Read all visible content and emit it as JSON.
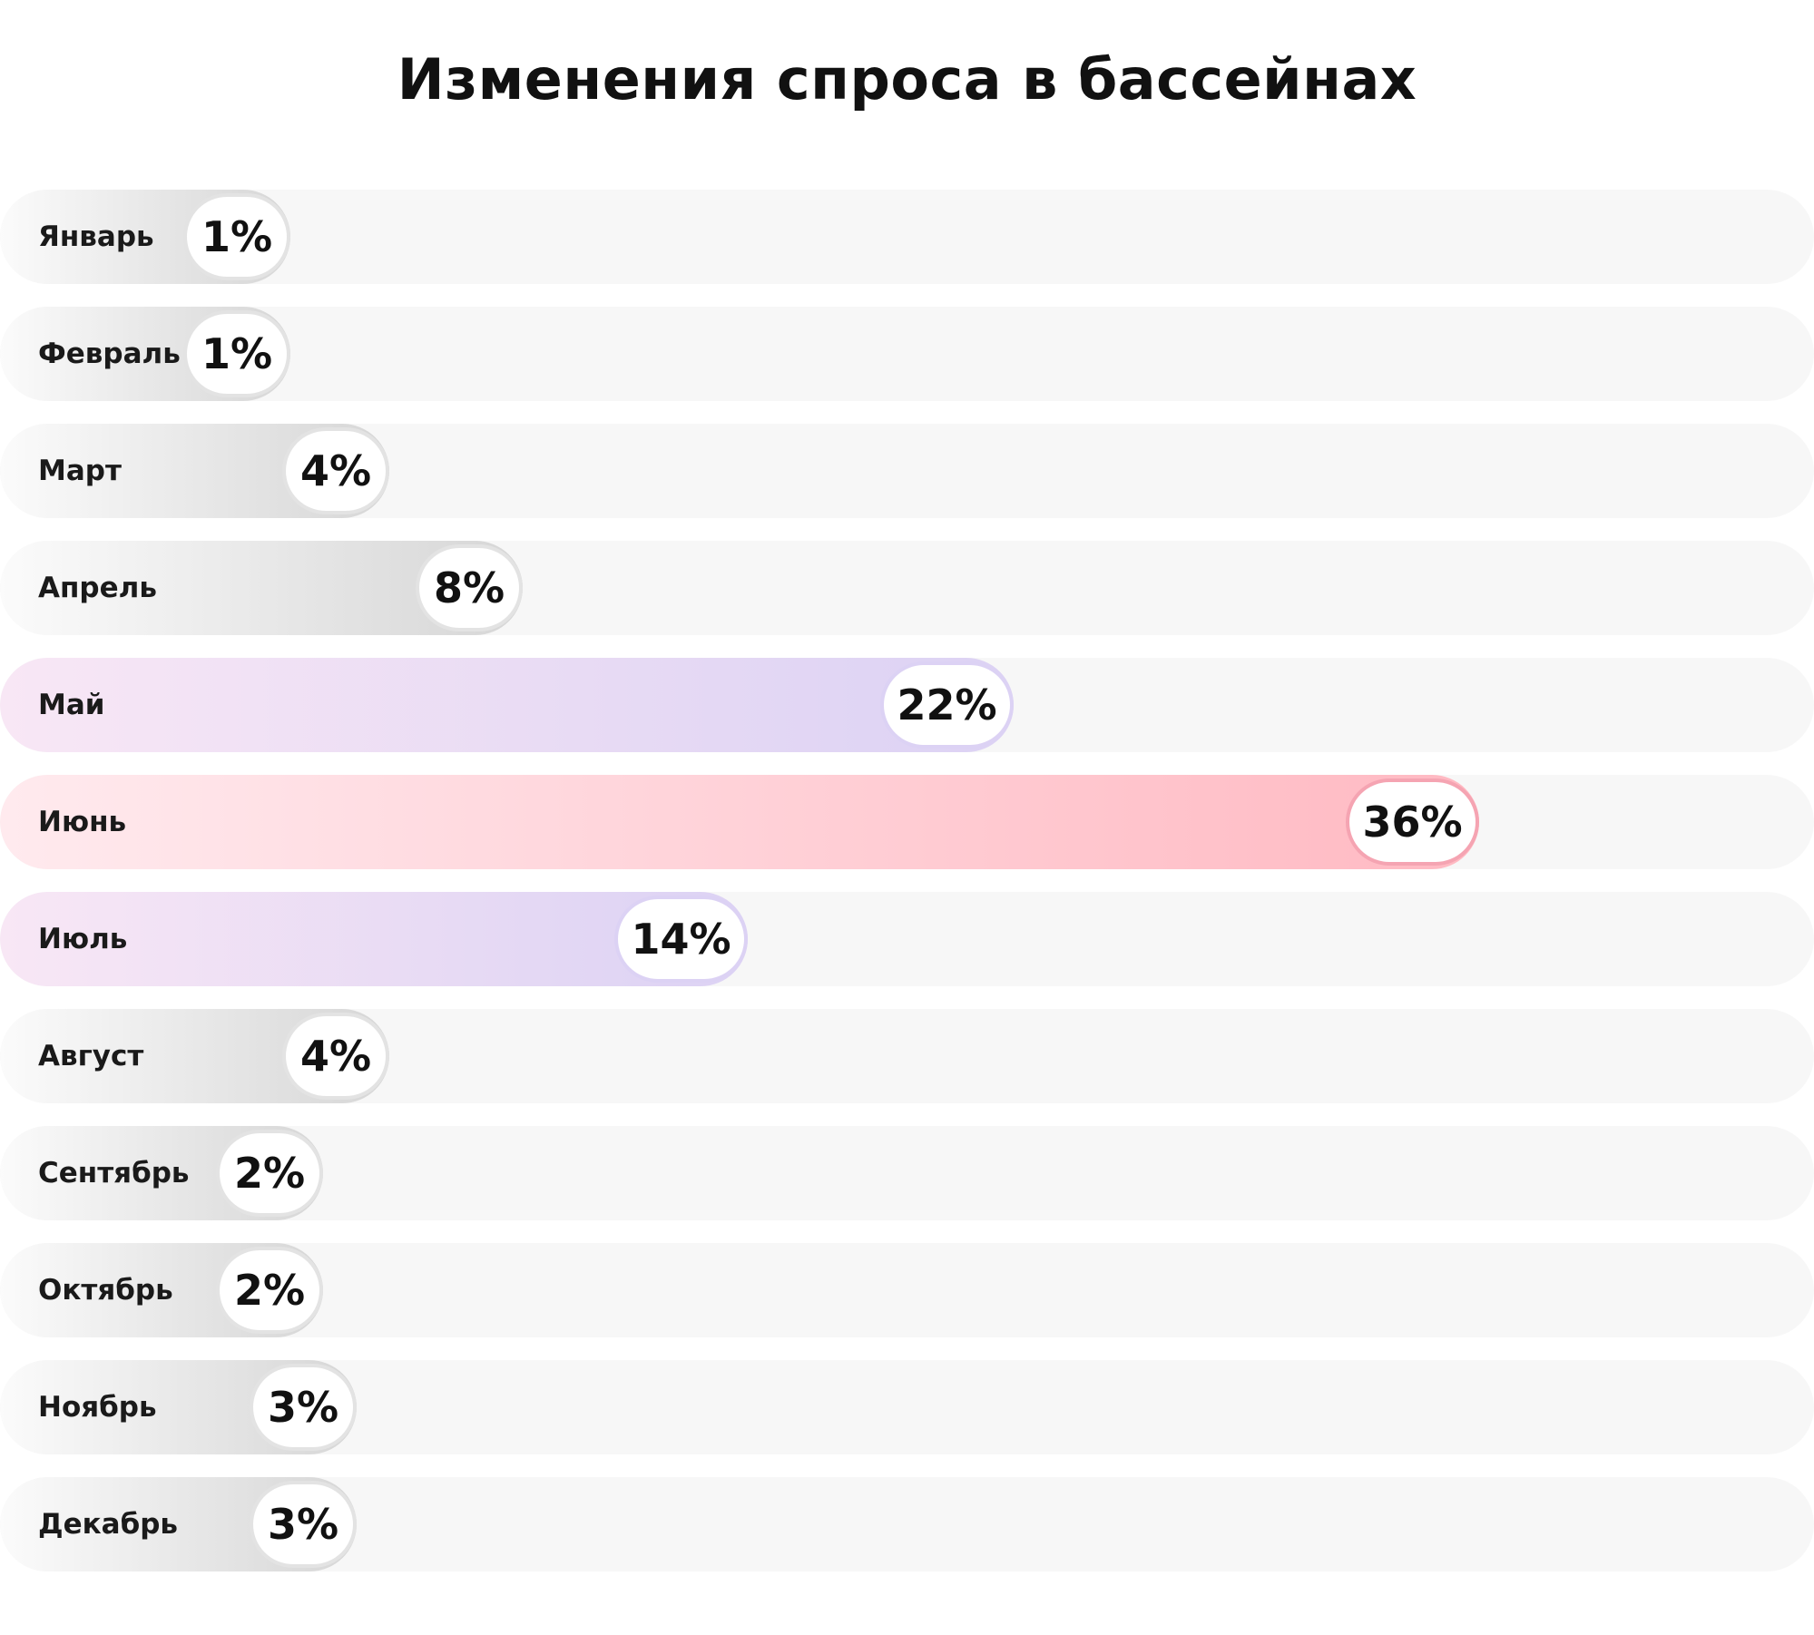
{
  "chart_data": {
    "type": "bar",
    "orientation": "horizontal",
    "title": "Изменения спроса в бассейнах",
    "unit": "%",
    "grid": false,
    "legend": "none",
    "categories": [
      "Январь",
      "Февраль",
      "Март",
      "Апрель",
      "Май",
      "Июнь",
      "Июль",
      "Август",
      "Сентябрь",
      "Октябрь",
      "Ноябрь",
      "Декабрь"
    ],
    "values": [
      1,
      1,
      4,
      8,
      22,
      36,
      14,
      4,
      2,
      2,
      3,
      3
    ],
    "labels": [
      "1%",
      "1%",
      "4%",
      "8%",
      "22%",
      "36%",
      "14%",
      "4%",
      "2%",
      "2%",
      "3%",
      "3%"
    ],
    "bar_styles": [
      "grey",
      "grey",
      "grey",
      "grey",
      "violet",
      "pink",
      "violet",
      "grey",
      "grey",
      "grey",
      "grey",
      "grey"
    ],
    "colors": {
      "track": "#f7f7f7",
      "grey_start": "#fbfbfb",
      "grey_end": "#d6d6d6",
      "violet_start": "#f8e7f5",
      "violet_end": "#dcd2f4",
      "pink_start": "#ffeaee",
      "pink_end": "#ffb9c2",
      "pink_border": "#f5a4b2"
    }
  }
}
